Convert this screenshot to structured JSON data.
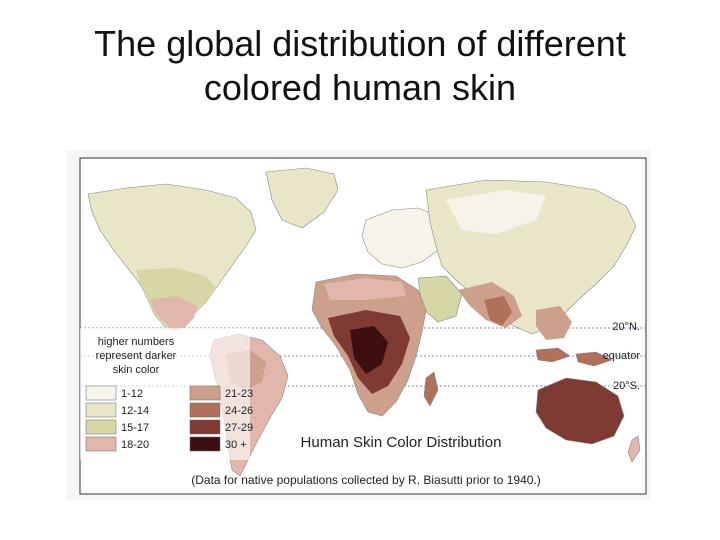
{
  "slide": {
    "title_line1": "The global distribution of different",
    "title_line2": "colored human skin"
  },
  "map": {
    "caption": "Human Skin Color Distribution",
    "source_note": "(Data for native populations collected by R. Biasutti prior to 1940.)",
    "lines": {
      "north": "20°N.",
      "equator": "equator",
      "south": "20°S."
    },
    "legend": {
      "description": [
        "higher numbers",
        "represent darker",
        "skin color"
      ],
      "items": [
        {
          "label": "1-12",
          "color": "#f7f3ea"
        },
        {
          "label": "12-14",
          "color": "#e9e6c8"
        },
        {
          "label": "15-17",
          "color": "#d6d6a6"
        },
        {
          "label": "18-20",
          "color": "#e2b7ab"
        },
        {
          "label": "21-23",
          "color": "#cda08c"
        },
        {
          "label": "24-26",
          "color": "#b0705a"
        },
        {
          "label": "27-29",
          "color": "#7e3a33"
        },
        {
          "label": "30 +",
          "color": "#3d0f10"
        }
      ]
    },
    "colors": {
      "ocean": "#ffffff",
      "grid_line": "#7890b8"
    }
  }
}
